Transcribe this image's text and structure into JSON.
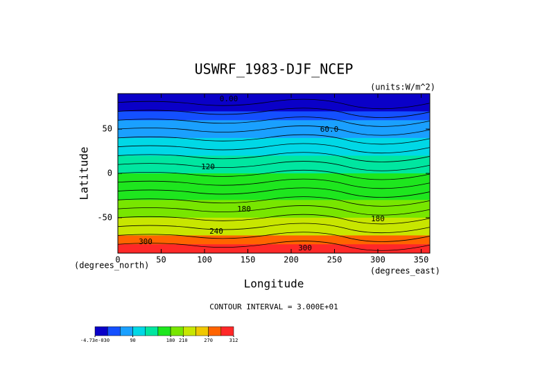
{
  "chart_data": {
    "type": "contour",
    "title": "USWRF_1983-DJF_NCEP",
    "units": "(units:W/m^2)",
    "x_label": "Longitude",
    "y_label": "Latitude",
    "x_unit_label": "(degrees_east)",
    "y_unit_label": "(degrees_north)",
    "xlim": [
      0,
      360
    ],
    "ylim": [
      -90,
      90
    ],
    "xticks": [
      0,
      50,
      100,
      150,
      200,
      250,
      300,
      350
    ],
    "yticks": [
      -50,
      0,
      50
    ],
    "latitudes": [
      85,
      75,
      65,
      55,
      45,
      35,
      25,
      15,
      5,
      -5,
      -15,
      -25,
      -35,
      -45,
      -55,
      -65,
      -75,
      -85
    ],
    "values": [
      5,
      15,
      40,
      70,
      85,
      100,
      110,
      125,
      140,
      150,
      160,
      165,
      180,
      200,
      215,
      235,
      280,
      305
    ],
    "contour_labels": [
      "0.00",
      "60.0",
      "120",
      "180",
      "180",
      "240",
      "300",
      "300"
    ],
    "contour_interval": "CONTOUR INTERVAL = 3.000E+01",
    "colorbar": {
      "bins": [
        0,
        30,
        60,
        90,
        120,
        150,
        180,
        210,
        240,
        270,
        300,
        312
      ],
      "colors": [
        "#0a00c8",
        "#1450ff",
        "#1aa0ff",
        "#00d8e6",
        "#00e6a0",
        "#1ee61e",
        "#78e600",
        "#c8e600",
        "#f0c800",
        "#ff6400",
        "#ff2828"
      ],
      "ticks": [
        {
          "value": 0,
          "label": "-4.73e-030"
        },
        90,
        180,
        210,
        270,
        312
      ]
    }
  }
}
